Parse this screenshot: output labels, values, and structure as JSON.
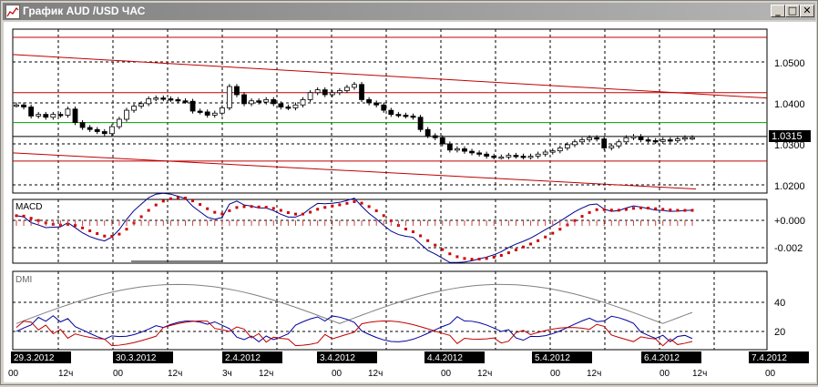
{
  "window": {
    "title": "График AUD /USD  ЧАС",
    "buttons": [
      "_",
      "□",
      "✕"
    ]
  },
  "price_panel": {
    "current_price": "1.0315",
    "y_ticks": [
      "1.0500",
      "1.0400",
      "1.0300",
      "1.0200"
    ]
  },
  "macd_panel": {
    "label": "MACD",
    "y_ticks": [
      "+0.000",
      "-0.002"
    ]
  },
  "dmi_panel": {
    "label": "DMI",
    "y_ticks": [
      "40",
      "20"
    ]
  },
  "x_axis": {
    "dates": [
      "29.3.2012",
      "30.3.2012",
      "2.4.2012",
      "3.4.2012",
      "4.4.2012",
      "5.4.2012",
      "6.4.2012",
      "7.4.2012"
    ],
    "hours": [
      "00",
      "12ч",
      "00",
      "12ч",
      "3ч",
      "12ч",
      "00",
      "12ч",
      "00",
      "12ч",
      "00",
      "12ч",
      "00",
      "12ч",
      "00"
    ]
  },
  "chart_data": {
    "type": "line",
    "title": "График AUD /USD  ЧАС",
    "candle_closes": [
      1.0395,
      1.039,
      1.0368,
      1.0372,
      1.0365,
      1.0372,
      1.037,
      1.0385,
      1.0352,
      1.034,
      1.0335,
      1.033,
      1.0325,
      1.0342,
      1.036,
      1.0382,
      1.0392,
      1.0398,
      1.041,
      1.0412,
      1.041,
      1.0408,
      1.0405,
      1.0404,
      1.038,
      1.0378,
      1.037,
      1.0375,
      1.0388,
      1.044,
      1.042,
      1.0398,
      1.0405,
      1.0402,
      1.0408,
      1.0398,
      1.039,
      1.0388,
      1.0395,
      1.0408,
      1.0425,
      1.0432,
      1.042,
      1.0425,
      1.043,
      1.0438,
      1.0445,
      1.0408,
      1.04,
      1.0395,
      1.0382,
      1.0372,
      1.037,
      1.0368,
      1.0365,
      1.0335,
      1.032,
      1.0315,
      1.03,
      1.0285,
      1.0288,
      1.0282,
      1.0278,
      1.0275,
      1.027,
      1.0268,
      1.0268,
      1.0272,
      1.027,
      1.0268,
      1.027,
      1.0275,
      1.028,
      1.0283,
      1.029,
      1.0298,
      1.0305,
      1.031,
      1.0315,
      1.0312,
      1.029,
      1.0295,
      1.0305,
      1.0315,
      1.0318,
      1.031,
      1.0308,
      1.0306,
      1.031,
      1.0308,
      1.0312,
      1.0315,
      1.0315
    ],
    "horizontal_levels": [
      1.056,
      1.0425,
      1.0352,
      1.0318,
      1.0258
    ],
    "trend_lines": [
      {
        "from": 1.0518,
        "to": 1.0412
      },
      {
        "from": 1.0278,
        "to": 1.019
      }
    ],
    "macd_range": [
      -0.0035,
      0.0012
    ],
    "dmi_range": [
      0,
      60
    ]
  }
}
